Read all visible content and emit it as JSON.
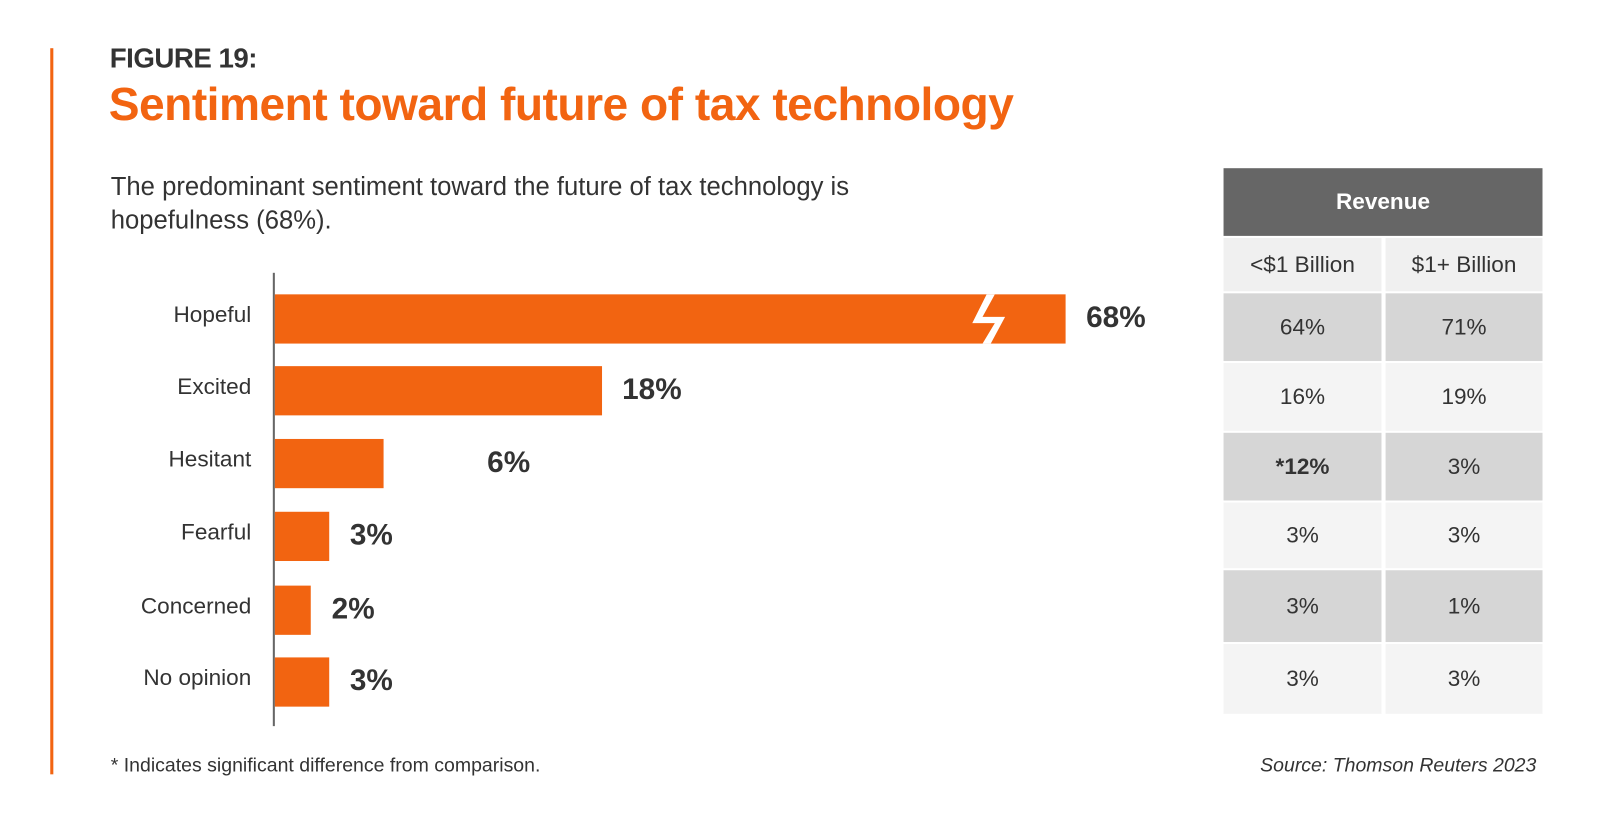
{
  "figure_label": "FIGURE 19:",
  "title": "Sentiment toward future of tax technology",
  "subtitle": "The predominant sentiment toward the future of tax technology is hopefulness (68%).",
  "colors": {
    "accent": "#f26411",
    "table_header": "#666666",
    "row_dark": "#d6d6d6",
    "row_light": "#f4f4f4"
  },
  "chart_data": {
    "type": "bar",
    "orientation": "horizontal",
    "categories": [
      "Hopeful",
      "Excited",
      "Hesitant",
      "Fearful",
      "Concerned",
      "No opinion"
    ],
    "values": [
      68,
      18,
      6,
      3,
      2,
      3
    ],
    "value_labels": [
      "68%",
      "18%",
      "6%",
      "3%",
      "2%",
      "3%"
    ],
    "axis_break_on": "Hopeful",
    "title": "Sentiment toward future of tax technology",
    "xlabel": "",
    "ylabel": ""
  },
  "table": {
    "header": "Revenue",
    "columns": [
      "<$1 Billion",
      "$1+ Billion"
    ],
    "rows": [
      [
        "64%",
        "71%"
      ],
      [
        "16%",
        "19%"
      ],
      [
        "*12%",
        "3%"
      ],
      [
        "3%",
        "3%"
      ],
      [
        "3%",
        "1%"
      ],
      [
        "3%",
        "3%"
      ]
    ]
  },
  "footnote": "* Indicates significant difference from comparison.",
  "source": "Source: Thomson Reuters 2023"
}
